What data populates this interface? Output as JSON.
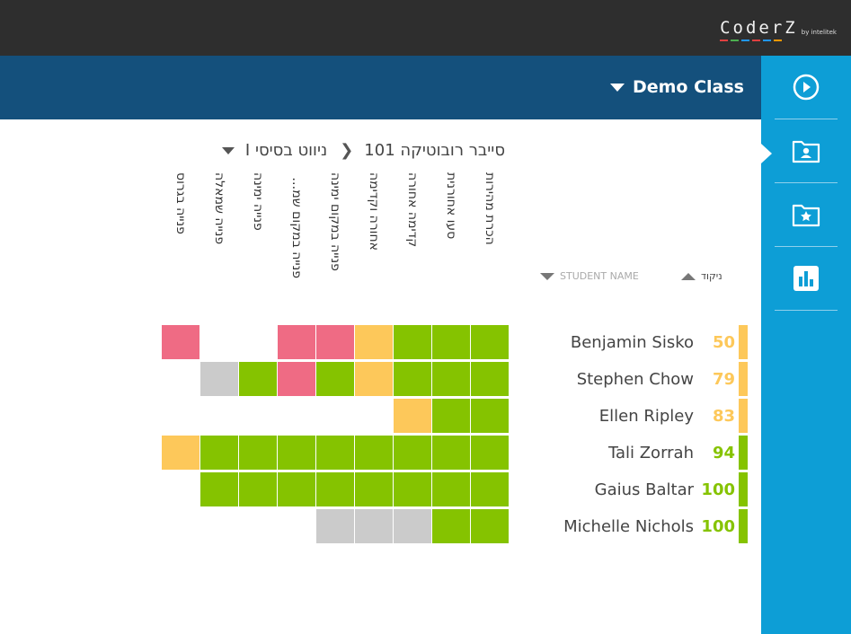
{
  "topbar": {
    "logo_text": "CoderZ",
    "logo_by": "by intelitek"
  },
  "logo_bar_colors": [
    "#e04040",
    "#4caf50",
    "#2196f3",
    "#e04040",
    "#2196f3",
    "#ff9800"
  ],
  "class_selector": {
    "label": "Demo Class"
  },
  "breadcrumb": {
    "course": "סייבר רובוטיקה 101",
    "mission": "ניווט בסיסי I"
  },
  "columns": [
    "הכרת מהירות",
    "סעו אחורנית",
    "קדימה אחורה",
    "אחורה וקדימה",
    "פנייה במקום ימינה",
    "פנייה במקום שמאלה",
    "פנייה ימינה",
    "פנייה שמאלה",
    "פנייה בגרוס"
  ],
  "sort": {
    "student_name": "STUDENT NAME",
    "score": "ניקוד"
  },
  "colors": {
    "green": "#85c300",
    "yellow": "#fdc85a",
    "red": "#ef6b84",
    "grey": "#cbcbcb",
    "empty": "#ffffff"
  },
  "students": [
    {
      "name": "Benjamin Sisko",
      "score": "50",
      "status": "yellow",
      "cells": [
        "green",
        "green",
        "green",
        "yellow",
        "red",
        "red",
        "empty",
        "empty",
        "red"
      ]
    },
    {
      "name": "Stephen Chow",
      "score": "79",
      "status": "yellow",
      "cells": [
        "green",
        "green",
        "green",
        "yellow",
        "green",
        "red",
        "green",
        "grey",
        "empty"
      ]
    },
    {
      "name": "Ellen Ripley",
      "score": "83",
      "status": "yellow",
      "cells": [
        "green",
        "green",
        "yellow",
        "empty",
        "empty",
        "empty",
        "empty",
        "empty",
        "empty"
      ]
    },
    {
      "name": "Tali Zorrah",
      "score": "94",
      "status": "green",
      "cells": [
        "green",
        "green",
        "green",
        "green",
        "green",
        "green",
        "green",
        "green",
        "yellow"
      ]
    },
    {
      "name": "Gaius Baltar",
      "score": "100",
      "status": "green",
      "cells": [
        "green",
        "green",
        "green",
        "green",
        "green",
        "green",
        "green",
        "green",
        "empty"
      ]
    },
    {
      "name": "Michelle Nichols",
      "score": "100",
      "status": "green",
      "cells": [
        "green",
        "green",
        "grey",
        "grey",
        "grey",
        "empty",
        "empty",
        "empty",
        "empty"
      ]
    }
  ]
}
